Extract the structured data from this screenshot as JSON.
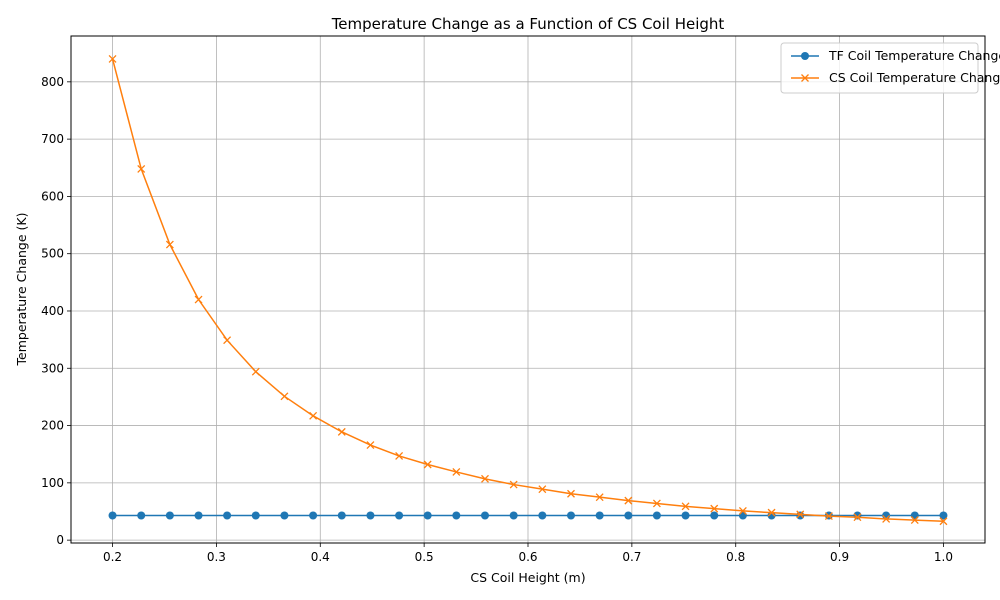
{
  "chart_data": {
    "type": "line",
    "title": "Temperature Change as a Function of CS Coil Height",
    "xlabel": "CS Coil Height (m)",
    "ylabel": "Temperature Change (K)",
    "xlim": [
      0.16,
      1.04
    ],
    "ylim": [
      -5,
      880
    ],
    "x_ticks": [
      0.2,
      0.3,
      0.4,
      0.5,
      0.6,
      0.7,
      0.8,
      0.9,
      1.0
    ],
    "x_tick_labels": [
      "0.2",
      "0.3",
      "0.4",
      "0.5",
      "0.6",
      "0.7",
      "0.8",
      "0.9",
      "1.0"
    ],
    "y_ticks": [
      0,
      100,
      200,
      300,
      400,
      500,
      600,
      700,
      800
    ],
    "y_tick_labels": [
      "0",
      "100",
      "200",
      "300",
      "400",
      "500",
      "600",
      "700",
      "800"
    ],
    "grid": true,
    "legend_position": "top-right",
    "x": [
      0.2,
      0.2276,
      0.2552,
      0.2828,
      0.3103,
      0.3379,
      0.3655,
      0.3931,
      0.4207,
      0.4483,
      0.4759,
      0.5034,
      0.531,
      0.5586,
      0.5862,
      0.6138,
      0.6414,
      0.669,
      0.6966,
      0.7241,
      0.7517,
      0.7793,
      0.8069,
      0.8345,
      0.8621,
      0.8897,
      0.9172,
      0.9448,
      0.9724,
      1.0
    ],
    "series": [
      {
        "name": "TF Coil Temperature Change",
        "color": "#1f77b4",
        "marker": "circle",
        "values": [
          43,
          43,
          43,
          43,
          43,
          43,
          43,
          43,
          43,
          43,
          43,
          43,
          43,
          43,
          43,
          43,
          43,
          43,
          43,
          43,
          43,
          43,
          43,
          43,
          43,
          43,
          43,
          43,
          43,
          43
        ]
      },
      {
        "name": "CS Coil Temperature Change",
        "color": "#ff7f0e",
        "marker": "x",
        "values": [
          840,
          648,
          516,
          420,
          349,
          294,
          251,
          217,
          189,
          166,
          147,
          132,
          119,
          107,
          97,
          89,
          81,
          75,
          69,
          64,
          59,
          55,
          51,
          48,
          45,
          42,
          40,
          37,
          35,
          33
        ]
      }
    ]
  }
}
